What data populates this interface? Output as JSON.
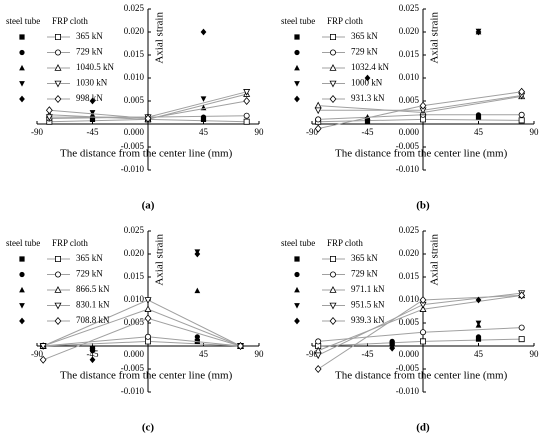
{
  "chart_data": [
    {
      "type": "scatter-line",
      "label": "(a)",
      "x_label": "The distance from the center line (mm)",
      "y_label": "Axial strain",
      "legend_titles": [
        "steel tube",
        "FRP cloth"
      ],
      "color": "#000000",
      "line_color": "#a0a0a0",
      "xlim": [
        -90,
        90
      ],
      "xticks": [
        -90,
        -45,
        45,
        90
      ],
      "ylim": [
        -0.01,
        0.025
      ],
      "yticks": [
        {
          "value": -0.01,
          "label": "-0.010"
        },
        -0.005,
        {
          "value": 0,
          "label": "0.000"
        },
        0.005,
        {
          "value": 0.01,
          "label": "0.010"
        },
        0.015,
        {
          "value": 0.02,
          "label": "0.020"
        },
        0.025
      ],
      "steel_x": [
        -45,
        45
      ],
      "frp_x": [
        -80,
        0,
        80
      ],
      "series": [
        {
          "name": "365 kN",
          "marker": "square",
          "steel_values": [
            0.001,
            0.001
          ],
          "frp_values": [
            0.0005,
            0.001,
            0.0005
          ]
        },
        {
          "name": "729 kN",
          "marker": "circle",
          "steel_values": [
            0.0012,
            0.0015
          ],
          "frp_values": [
            0.0012,
            0.0015,
            0.0018
          ]
        },
        {
          "name": "1040.5 kN",
          "marker": "triangle-up",
          "steel_values": [
            0.002,
            0.0035
          ],
          "frp_values": [
            0.002,
            0.001,
            0.0065
          ]
        },
        {
          "name": "1030 kN",
          "marker": "triangle-down",
          "steel_values": [
            0.0025,
            0.0055
          ],
          "frp_values": [
            0.0015,
            0.0015,
            0.007
          ]
        },
        {
          "name": "998 kN",
          "marker": "diamond",
          "steel_values": [
            0.005,
            0.02
          ],
          "frp_values": [
            0.003,
            0.0012,
            0.005
          ]
        }
      ]
    },
    {
      "type": "scatter-line",
      "label": "(b)",
      "x_label": "The distance from the center line (mm)",
      "y_label": "Axial strain",
      "legend_titles": [
        "steel tube",
        "FRP cloth"
      ],
      "color": "#000000",
      "line_color": "#a0a0a0",
      "xlim": [
        -90,
        90
      ],
      "xticks": [
        -90,
        -45,
        45,
        90
      ],
      "ylim": [
        -0.01,
        0.025
      ],
      "yticks": [
        {
          "value": -0.01,
          "label": "-0.010"
        },
        -0.005,
        {
          "value": 0,
          "label": "0.000"
        },
        0.005,
        {
          "value": 0.01,
          "label": "0.010"
        },
        0.015,
        {
          "value": 0.02,
          "label": "0.020"
        },
        0.025
      ],
      "steel_x": [
        -45,
        45
      ],
      "frp_x": [
        -85,
        0,
        80
      ],
      "series": [
        {
          "name": "365 kN",
          "marker": "square",
          "steel_values": [
            0.0005,
            0.0015
          ],
          "frp_values": [
            0.0005,
            0.001,
            0.0008
          ]
        },
        {
          "name": "729 kN",
          "marker": "circle",
          "steel_values": [
            0.001,
            0.002
          ],
          "frp_values": [
            0.001,
            0.002,
            0.002
          ]
        },
        {
          "name": "1032.4 kN",
          "marker": "triangle-up",
          "steel_values": [
            0.0015,
            0.02
          ],
          "frp_values": [
            0.004,
            0.0025,
            0.006
          ]
        },
        {
          "name": "1000 kN",
          "marker": "triangle-down",
          "steel_values": [
            0.001,
            0.0202
          ],
          "frp_values": [
            0.003,
            0.003,
            0.0062
          ]
        },
        {
          "name": "931.3 kN",
          "marker": "diamond",
          "steel_values": [
            0.01,
            0.02
          ],
          "frp_values": [
            -0.001,
            0.004,
            0.007
          ]
        }
      ]
    },
    {
      "type": "scatter-line",
      "label": "(c)",
      "x_label": "The distance from the center line (mm)",
      "y_label": "Axial strain",
      "legend_titles": [
        "steel tube",
        "FRP cloth"
      ],
      "color": "#000000",
      "line_color": "#a0a0a0",
      "xlim": [
        -90,
        90
      ],
      "xticks": [
        -90,
        -45,
        45,
        90
      ],
      "ylim": [
        -0.01,
        0.025
      ],
      "yticks": [
        {
          "value": -0.01,
          "label": "-0.010"
        },
        -0.005,
        {
          "value": 0,
          "label": "0.000"
        },
        0.005,
        {
          "value": 0.01,
          "label": "0.010"
        },
        0.015,
        {
          "value": 0.02,
          "label": "0.020"
        },
        0.025
      ],
      "steel_x": [
        -45,
        40
      ],
      "frp_x": [
        -85,
        0,
        75
      ],
      "series": [
        {
          "name": "365 kN",
          "marker": "square",
          "steel_values": [
            -0.0005,
            0.001
          ],
          "frp_values": [
            0,
            0.001,
            0
          ]
        },
        {
          "name": "729 kN",
          "marker": "circle",
          "steel_values": [
            -0.001,
            0.002
          ],
          "frp_values": [
            0,
            0.002,
            0
          ]
        },
        {
          "name": "866.5 kN",
          "marker": "triangle-up",
          "steel_values": [
            -0.0005,
            0.012
          ],
          "frp_values": [
            0,
            0.008,
            0
          ]
        },
        {
          "name": "830.1 kN",
          "marker": "triangle-down",
          "steel_values": [
            -0.001,
            0.0205
          ],
          "frp_values": [
            0,
            0.01,
            0
          ]
        },
        {
          "name": "708.8 kN",
          "marker": "diamond",
          "steel_values": [
            -0.003,
            0.02
          ],
          "frp_values": [
            -0.003,
            0.006,
            0
          ]
        }
      ]
    },
    {
      "type": "scatter-line",
      "label": "(d)",
      "x_label": "The distance from the center line (mm)",
      "y_label": "Axial strain",
      "legend_titles": [
        "steel tube",
        "FRP cloth"
      ],
      "color": "#000000",
      "line_color": "#a0a0a0",
      "xlim": [
        -90,
        90
      ],
      "xticks": [
        -90,
        -45,
        45,
        90
      ],
      "ylim": [
        -0.01,
        0.025
      ],
      "yticks": [
        {
          "value": -0.01,
          "label": "-0.010"
        },
        -0.005,
        {
          "value": 0,
          "label": "0.000"
        },
        0.005,
        {
          "value": 0.01,
          "label": "0.010"
        },
        0.015,
        {
          "value": 0.02,
          "label": "0.020"
        },
        0.025
      ],
      "steel_x": [
        -25,
        45
      ],
      "frp_x": [
        -85,
        0,
        80
      ],
      "series": [
        {
          "name": "365 kN",
          "marker": "square",
          "steel_values": [
            0.0005,
            0.0015
          ],
          "frp_values": [
            0,
            0.001,
            0.0015
          ]
        },
        {
          "name": "729 kN",
          "marker": "circle",
          "steel_values": [
            0.001,
            0.002
          ],
          "frp_values": [
            0.001,
            0.003,
            0.004
          ]
        },
        {
          "name": "971.1 kN",
          "marker": "triangle-up",
          "steel_values": [
            0,
            0.0045
          ],
          "frp_values": [
            -0.001,
            0.008,
            0.011
          ]
        },
        {
          "name": "951.5 kN",
          "marker": "triangle-down",
          "steel_values": [
            0,
            0.005
          ],
          "frp_values": [
            -0.002,
            0.009,
            0.0115
          ]
        },
        {
          "name": "939.3 kN",
          "marker": "diamond",
          "steel_values": [
            -0.0005,
            0.01
          ],
          "frp_values": [
            -0.005,
            0.01,
            0.011
          ]
        }
      ]
    }
  ]
}
